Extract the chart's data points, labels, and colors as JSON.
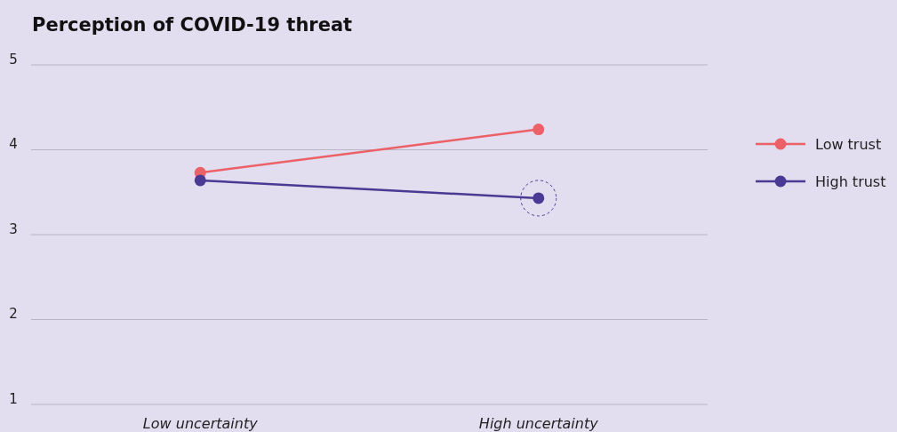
{
  "chart_data": {
    "type": "line",
    "title": "Perception of COVID-19 threat",
    "categories": [
      "Low uncertainty",
      "High uncertainty"
    ],
    "series": [
      {
        "name": "Low trust",
        "color": "#ec6167",
        "values": [
          3.73,
          4.24
        ]
      },
      {
        "name": "High trust",
        "color": "#4b3a93",
        "values": [
          3.64,
          3.43
        ]
      }
    ],
    "ylim": [
      1,
      5
    ],
    "yticks": [
      1,
      2,
      3,
      4,
      5
    ],
    "grid": "y",
    "legend": "right",
    "marker": "circle",
    "line_style": "solid"
  }
}
